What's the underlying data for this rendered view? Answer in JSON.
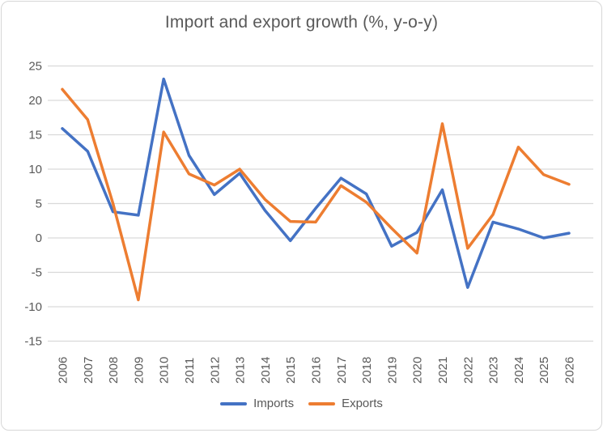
{
  "title": "Import and export growth (%, y-o-y)",
  "chart_data": {
    "type": "line",
    "title": "Import and export growth (%, y-o-y)",
    "xlabel": "",
    "ylabel": "",
    "x": [
      2006,
      2007,
      2008,
      2009,
      2010,
      2011,
      2012,
      2013,
      2014,
      2015,
      2016,
      2017,
      2018,
      2019,
      2020,
      2021,
      2022,
      2023,
      2024,
      2025,
      2026
    ],
    "series": [
      {
        "name": "Imports",
        "color": "#4472C4",
        "values": [
          15.9,
          12.6,
          3.8,
          3.3,
          23.1,
          12.0,
          6.3,
          9.4,
          4.0,
          -0.4,
          4.3,
          8.7,
          6.4,
          -1.2,
          0.8,
          7.0,
          -7.2,
          2.3,
          1.3,
          0.0,
          0.7
        ]
      },
      {
        "name": "Exports",
        "color": "#ED7D31",
        "values": [
          21.6,
          17.2,
          5.0,
          -9.0,
          15.4,
          9.3,
          7.7,
          10.0,
          5.6,
          2.4,
          2.3,
          7.6,
          5.2,
          1.4,
          -2.2,
          16.6,
          -1.5,
          3.4,
          13.2,
          9.2,
          7.8
        ]
      }
    ],
    "ylim": [
      -15,
      25
    ],
    "yticks": [
      25,
      20,
      15,
      10,
      5,
      0,
      -5,
      -10,
      -15
    ],
    "grid": true,
    "gridline_color": "#d9d9d9",
    "text_color": "#595959",
    "legend_position": "bottom"
  },
  "legend": {
    "items": [
      {
        "label": "Imports",
        "color": "#4472C4"
      },
      {
        "label": "Exports",
        "color": "#ED7D31"
      }
    ]
  }
}
